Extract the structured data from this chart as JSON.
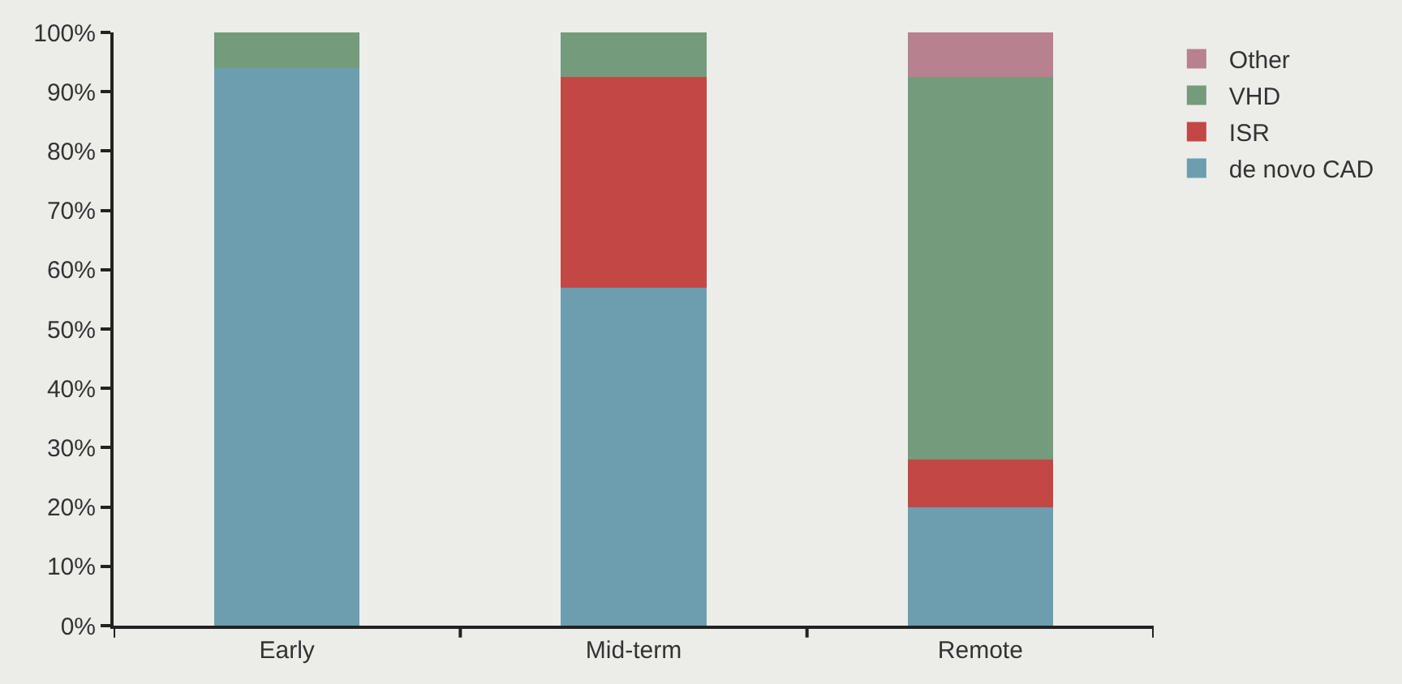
{
  "chart_data": {
    "type": "bar",
    "stacked": true,
    "categories": [
      "Early",
      "Mid-term",
      "Remote"
    ],
    "series": [
      {
        "name": "de novo CAD",
        "color": "#6c9eb0",
        "values": [
          94,
          57,
          20
        ]
      },
      {
        "name": "ISR",
        "color": "#c34845",
        "values": [
          0,
          35.5,
          8
        ]
      },
      {
        "name": "VHD",
        "color": "#739b7c",
        "values": [
          6,
          7.5,
          64.5
        ]
      },
      {
        "name": "Other",
        "color": "#b7818f",
        "values": [
          0,
          0,
          7.5
        ]
      }
    ],
    "ylim": [
      0,
      100
    ],
    "yticks": [
      {
        "value": 0,
        "label": "0%"
      },
      {
        "value": 10,
        "label": "10%"
      },
      {
        "value": 20,
        "label": "20%"
      },
      {
        "value": 30,
        "label": "30%"
      },
      {
        "value": 40,
        "label": "40%"
      },
      {
        "value": 50,
        "label": "50%"
      },
      {
        "value": 60,
        "label": "60%"
      },
      {
        "value": 70,
        "label": "70%"
      },
      {
        "value": 80,
        "label": "80%"
      },
      {
        "value": 90,
        "label": "90%"
      },
      {
        "value": 100,
        "label": "100%"
      }
    ],
    "grid": false,
    "legend": "top right"
  }
}
